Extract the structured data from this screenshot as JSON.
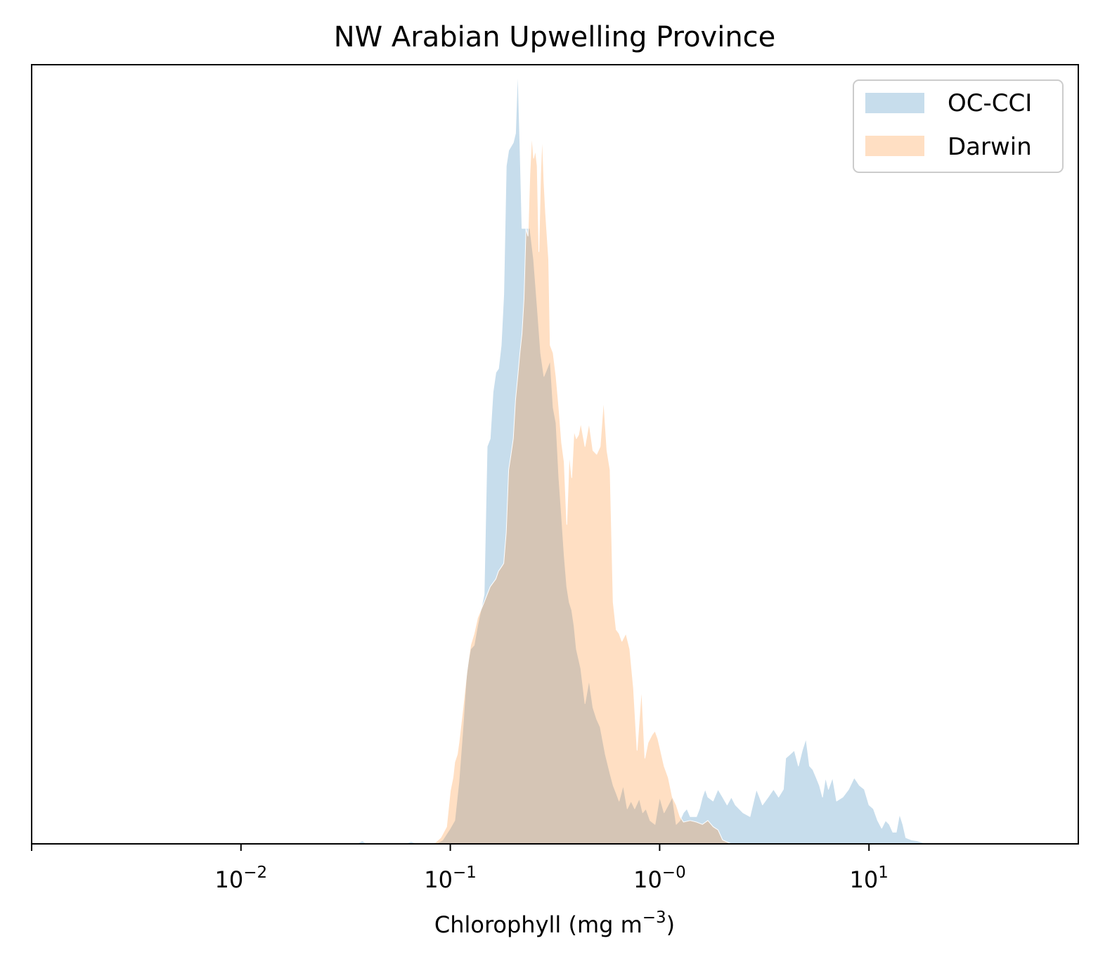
{
  "chart_data": {
    "type": "area",
    "title": "NW Arabian Upwelling Province",
    "xlabel": "Chlorophyll  (mg m",
    "xlabel_sup": "−3",
    "xlabel_close": ")",
    "ylabel": "",
    "x_scale": "log",
    "xlim": [
      0.001,
      100
    ],
    "ylim": [
      0,
      1
    ],
    "y_ticks_shown": false,
    "grid": false,
    "legend_position": "top-right",
    "x_ticks": [
      {
        "value": 0.01,
        "base": "10",
        "exp": "−2"
      },
      {
        "value": 0.1,
        "base": "10",
        "exp": "−1"
      },
      {
        "value": 1,
        "base": "10",
        "exp": "−0"
      },
      {
        "value": 10,
        "base": "10",
        "exp": "1"
      }
    ],
    "series": [
      {
        "name": "OC-CCI",
        "color": "#1f77b4",
        "opacity": 0.25,
        "points": [
          [
            0.0355,
            0.0
          ],
          [
            0.038,
            0.004
          ],
          [
            0.04,
            0.0
          ],
          [
            0.06,
            0.0
          ],
          [
            0.065,
            0.003
          ],
          [
            0.07,
            0.0
          ],
          [
            0.085,
            0.0
          ],
          [
            0.092,
            0.005
          ],
          [
            0.1,
            0.02
          ],
          [
            0.105,
            0.03
          ],
          [
            0.11,
            0.08
          ],
          [
            0.115,
            0.15
          ],
          [
            0.12,
            0.225
          ],
          [
            0.125,
            0.25
          ],
          [
            0.13,
            0.255
          ],
          [
            0.135,
            0.28
          ],
          [
            0.14,
            0.3
          ],
          [
            0.145,
            0.32
          ],
          [
            0.15,
            0.51
          ],
          [
            0.155,
            0.52
          ],
          [
            0.16,
            0.58
          ],
          [
            0.165,
            0.605
          ],
          [
            0.17,
            0.61
          ],
          [
            0.175,
            0.64
          ],
          [
            0.18,
            0.705
          ],
          [
            0.185,
            0.87
          ],
          [
            0.19,
            0.89
          ],
          [
            0.195,
            0.895
          ],
          [
            0.2,
            0.9
          ],
          [
            0.205,
            0.912
          ],
          [
            0.21,
            0.997
          ],
          [
            0.215,
            0.9
          ],
          [
            0.22,
            0.79
          ],
          [
            0.23,
            0.79
          ],
          [
            0.24,
            0.79
          ],
          [
            0.25,
            0.75
          ],
          [
            0.26,
            0.69
          ],
          [
            0.27,
            0.63
          ],
          [
            0.28,
            0.6
          ],
          [
            0.29,
            0.61
          ],
          [
            0.3,
            0.62
          ],
          [
            0.31,
            0.56
          ],
          [
            0.32,
            0.54
          ],
          [
            0.33,
            0.47
          ],
          [
            0.34,
            0.42
          ],
          [
            0.35,
            0.37
          ],
          [
            0.36,
            0.33
          ],
          [
            0.37,
            0.31
          ],
          [
            0.38,
            0.3
          ],
          [
            0.39,
            0.28
          ],
          [
            0.4,
            0.25
          ],
          [
            0.42,
            0.225
          ],
          [
            0.44,
            0.18
          ],
          [
            0.46,
            0.21
          ],
          [
            0.48,
            0.175
          ],
          [
            0.5,
            0.16
          ],
          [
            0.52,
            0.15
          ],
          [
            0.55,
            0.115
          ],
          [
            0.58,
            0.09
          ],
          [
            0.6,
            0.075
          ],
          [
            0.62,
            0.065
          ],
          [
            0.64,
            0.055
          ],
          [
            0.67,
            0.075
          ],
          [
            0.7,
            0.045
          ],
          [
            0.73,
            0.055
          ],
          [
            0.76,
            0.045
          ],
          [
            0.8,
            0.058
          ],
          [
            0.83,
            0.04
          ],
          [
            0.86,
            0.045
          ],
          [
            0.9,
            0.03
          ],
          [
            0.95,
            0.025
          ],
          [
            1.0,
            0.06
          ],
          [
            1.05,
            0.04
          ],
          [
            1.1,
            0.05
          ],
          [
            1.15,
            0.06
          ],
          [
            1.2,
            0.025
          ],
          [
            1.25,
            0.03
          ],
          [
            1.3,
            0.04
          ],
          [
            1.35,
            0.045
          ],
          [
            1.4,
            0.035
          ],
          [
            1.5,
            0.035
          ],
          [
            1.55,
            0.045
          ],
          [
            1.6,
            0.06
          ],
          [
            1.65,
            0.07
          ],
          [
            1.7,
            0.06
          ],
          [
            1.8,
            0.055
          ],
          [
            1.9,
            0.07
          ],
          [
            2.0,
            0.06
          ],
          [
            2.1,
            0.05
          ],
          [
            2.2,
            0.06
          ],
          [
            2.3,
            0.05
          ],
          [
            2.5,
            0.04
          ],
          [
            2.7,
            0.035
          ],
          [
            2.9,
            0.07
          ],
          [
            3.0,
            0.06
          ],
          [
            3.1,
            0.05
          ],
          [
            3.3,
            0.06
          ],
          [
            3.5,
            0.07
          ],
          [
            3.7,
            0.06
          ],
          [
            3.9,
            0.07
          ],
          [
            4.0,
            0.11
          ],
          [
            4.2,
            0.115
          ],
          [
            4.4,
            0.12
          ],
          [
            4.6,
            0.1
          ],
          [
            4.8,
            0.12
          ],
          [
            5.0,
            0.135
          ],
          [
            5.2,
            0.1
          ],
          [
            5.4,
            0.095
          ],
          [
            5.6,
            0.085
          ],
          [
            5.8,
            0.075
          ],
          [
            6.0,
            0.06
          ],
          [
            6.2,
            0.085
          ],
          [
            6.4,
            0.07
          ],
          [
            6.7,
            0.085
          ],
          [
            7.0,
            0.055
          ],
          [
            7.5,
            0.06
          ],
          [
            8.0,
            0.07
          ],
          [
            8.5,
            0.085
          ],
          [
            9.0,
            0.075
          ],
          [
            9.5,
            0.07
          ],
          [
            10.0,
            0.05
          ],
          [
            10.5,
            0.045
          ],
          [
            11.0,
            0.03
          ],
          [
            11.5,
            0.02
          ],
          [
            12.0,
            0.03
          ],
          [
            12.5,
            0.025
          ],
          [
            13.0,
            0.015
          ],
          [
            13.5,
            0.015
          ],
          [
            14.0,
            0.038
          ],
          [
            14.5,
            0.025
          ],
          [
            15.0,
            0.008
          ],
          [
            16.0,
            0.005
          ],
          [
            17.0,
            0.004
          ],
          [
            19.0,
            0.0
          ]
        ]
      },
      {
        "name": "Darwin",
        "color": "#ff7f0e",
        "opacity": 0.25,
        "points": [
          [
            0.08,
            0.0
          ],
          [
            0.085,
            0.002
          ],
          [
            0.09,
            0.008
          ],
          [
            0.093,
            0.015
          ],
          [
            0.096,
            0.022
          ],
          [
            0.1,
            0.068
          ],
          [
            0.103,
            0.085
          ],
          [
            0.105,
            0.105
          ],
          [
            0.108,
            0.115
          ],
          [
            0.11,
            0.13
          ],
          [
            0.115,
            0.175
          ],
          [
            0.12,
            0.22
          ],
          [
            0.125,
            0.255
          ],
          [
            0.13,
            0.27
          ],
          [
            0.135,
            0.29
          ],
          [
            0.14,
            0.3
          ],
          [
            0.145,
            0.31
          ],
          [
            0.15,
            0.32
          ],
          [
            0.155,
            0.33
          ],
          [
            0.16,
            0.335
          ],
          [
            0.165,
            0.34
          ],
          [
            0.17,
            0.35
          ],
          [
            0.175,
            0.355
          ],
          [
            0.18,
            0.36
          ],
          [
            0.185,
            0.4
          ],
          [
            0.19,
            0.48
          ],
          [
            0.195,
            0.5
          ],
          [
            0.2,
            0.52
          ],
          [
            0.205,
            0.57
          ],
          [
            0.21,
            0.6
          ],
          [
            0.215,
            0.63
          ],
          [
            0.22,
            0.655
          ],
          [
            0.225,
            0.7
          ],
          [
            0.23,
            0.79
          ],
          [
            0.235,
            0.78
          ],
          [
            0.24,
            0.86
          ],
          [
            0.245,
            0.91
          ],
          [
            0.25,
            0.88
          ],
          [
            0.255,
            0.89
          ],
          [
            0.26,
            0.87
          ],
          [
            0.265,
            0.76
          ],
          [
            0.27,
            0.86
          ],
          [
            0.275,
            0.91
          ],
          [
            0.28,
            0.85
          ],
          [
            0.285,
            0.81
          ],
          [
            0.29,
            0.78
          ],
          [
            0.295,
            0.75
          ],
          [
            0.3,
            0.64
          ],
          [
            0.31,
            0.63
          ],
          [
            0.32,
            0.6
          ],
          [
            0.33,
            0.56
          ],
          [
            0.34,
            0.515
          ],
          [
            0.35,
            0.49
          ],
          [
            0.36,
            0.41
          ],
          [
            0.37,
            0.5
          ],
          [
            0.38,
            0.47
          ],
          [
            0.39,
            0.53
          ],
          [
            0.4,
            0.52
          ],
          [
            0.41,
            0.525
          ],
          [
            0.42,
            0.54
          ],
          [
            0.44,
            0.51
          ],
          [
            0.46,
            0.54
          ],
          [
            0.48,
            0.505
          ],
          [
            0.5,
            0.5
          ],
          [
            0.52,
            0.51
          ],
          [
            0.54,
            0.57
          ],
          [
            0.56,
            0.505
          ],
          [
            0.58,
            0.48
          ],
          [
            0.6,
            0.31
          ],
          [
            0.62,
            0.275
          ],
          [
            0.64,
            0.27
          ],
          [
            0.66,
            0.26
          ],
          [
            0.69,
            0.27
          ],
          [
            0.72,
            0.25
          ],
          [
            0.75,
            0.2
          ],
          [
            0.78,
            0.12
          ],
          [
            0.82,
            0.2
          ],
          [
            0.85,
            0.11
          ],
          [
            0.88,
            0.13
          ],
          [
            0.92,
            0.14
          ],
          [
            0.95,
            0.145
          ],
          [
            0.98,
            0.135
          ],
          [
            1.0,
            0.125
          ],
          [
            1.05,
            0.1
          ],
          [
            1.1,
            0.085
          ],
          [
            1.15,
            0.06
          ],
          [
            1.2,
            0.05
          ],
          [
            1.25,
            0.035
          ],
          [
            1.3,
            0.028
          ],
          [
            1.4,
            0.03
          ],
          [
            1.5,
            0.028
          ],
          [
            1.6,
            0.025
          ],
          [
            1.7,
            0.03
          ],
          [
            1.8,
            0.022
          ],
          [
            1.9,
            0.018
          ],
          [
            2.0,
            0.005
          ],
          [
            2.2,
            0.0
          ]
        ]
      }
    ]
  }
}
